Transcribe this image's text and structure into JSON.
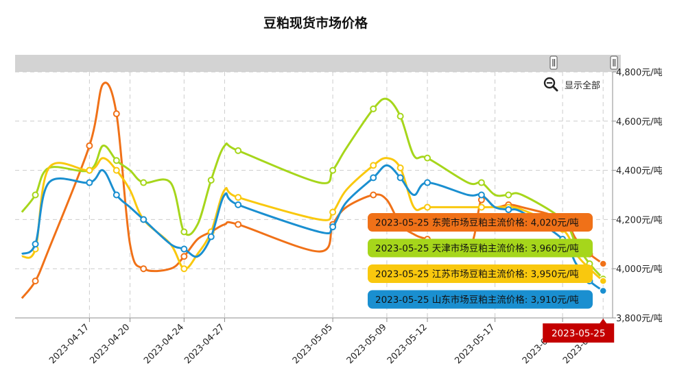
{
  "chart_data": {
    "type": "line",
    "title": "豆粕现货市场价格",
    "zoom_button_label": "显示全部",
    "ylim": [
      3800,
      4800
    ],
    "y_ticks": [
      "4,800元/吨",
      "4,600元/吨",
      "4,400元/吨",
      "4,200元/吨",
      "4,000元/吨",
      "3,800元/吨"
    ],
    "y_tick_values": [
      4800,
      4600,
      4400,
      4200,
      4000,
      3800
    ],
    "x_labels": [
      "2023-04-17",
      "2023-04-20",
      "2023-04-24",
      "2023-04-27",
      "2023-05-05",
      "2023-05-09",
      "2023-05-12",
      "2023-05-17",
      "2023-05-22",
      "2023-05-25"
    ],
    "hover_label": "2023-05-25",
    "x": [
      "2023-04-12",
      "2023-04-13",
      "2023-04-14",
      "2023-04-17",
      "2023-04-18",
      "2023-04-19",
      "2023-04-20",
      "2023-04-21",
      "2023-04-23",
      "2023-04-24",
      "2023-04-25",
      "2023-04-26",
      "2023-04-27",
      "2023-04-28",
      "2023-05-04",
      "2023-05-05",
      "2023-05-06",
      "2023-05-08",
      "2023-05-09",
      "2023-05-10",
      "2023-05-11",
      "2023-05-12",
      "2023-05-15",
      "2023-05-16",
      "2023-05-17",
      "2023-05-18",
      "2023-05-19",
      "2023-05-22",
      "2023-05-23",
      "2023-05-24",
      "2023-05-25"
    ],
    "series": [
      {
        "name": "东莞市场豆粕主流价格",
        "color": "#f07118",
        "values": [
          3880,
          3950,
          4080,
          4500,
          4750,
          4630,
          4100,
          4000,
          4000,
          4050,
          4120,
          4150,
          4180,
          4180,
          4070,
          4180,
          4250,
          4300,
          4280,
          4180,
          4140,
          4120,
          4080,
          4280,
          4250,
          4260,
          4250,
          4200,
          4120,
          4060,
          4020
        ]
      },
      {
        "name": "天津市场豆粕主流价格",
        "color": "#a6d61b",
        "values": [
          4230,
          4300,
          4410,
          4400,
          4500,
          4440,
          4400,
          4350,
          4350,
          4150,
          4180,
          4360,
          4500,
          4480,
          4350,
          4400,
          4490,
          4650,
          4690,
          4620,
          4460,
          4450,
          4350,
          4350,
          4300,
          4300,
          4300,
          4200,
          4100,
          4020,
          3960
        ]
      },
      {
        "name": "江苏市场豆粕主流价格",
        "color": "#f9c80e",
        "values": [
          4050,
          4080,
          4410,
          4400,
          4450,
          4400,
          4320,
          4200,
          4100,
          4000,
          4060,
          4150,
          4320,
          4290,
          4200,
          4230,
          4320,
          4420,
          4450,
          4410,
          4250,
          4250,
          4250,
          4250,
          4250,
          4250,
          4240,
          4160,
          4060,
          4000,
          3950
        ]
      },
      {
        "name": "山东市场豆粕主流价格",
        "color": "#1a8fd0",
        "values": [
          4060,
          4100,
          4350,
          4350,
          4400,
          4300,
          4250,
          4200,
          4100,
          4080,
          4050,
          4130,
          4300,
          4260,
          4150,
          4170,
          4270,
          4370,
          4420,
          4370,
          4300,
          4350,
          4300,
          4300,
          4250,
          4240,
          4230,
          4120,
          4020,
          3950,
          3910
        ]
      }
    ],
    "tooltips": [
      {
        "date": "2023-05-25",
        "label": "东莞市场豆粕主流价格",
        "value": "4,020元/吨",
        "color": "#f07118"
      },
      {
        "date": "2023-05-25",
        "label": "天津市场豆粕主流价格",
        "value": "3,960元/吨",
        "color": "#a6d61b"
      },
      {
        "date": "2023-05-25",
        "label": "江苏市场豆粕主流价格",
        "value": "3,950元/吨",
        "color": "#f9c80e"
      },
      {
        "date": "2023-05-25",
        "label": "山东市场豆粕主流价格",
        "value": "3,910元/吨",
        "color": "#1a8fd0"
      }
    ],
    "colors": {
      "axis": "#8c8c8c",
      "grid": "#cccccc",
      "navigator": "#d3d3d3",
      "hover_badge": "#c40000"
    },
    "grid": true,
    "legend": "none"
  }
}
